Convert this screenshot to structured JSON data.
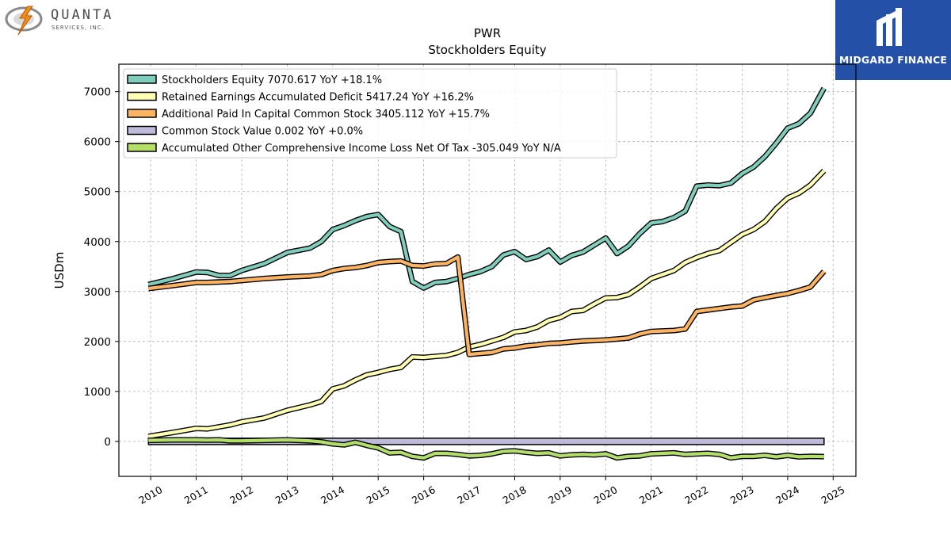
{
  "logo": {
    "company_name": "QUANTA",
    "company_sub": "SERVICES, INC.",
    "brand": "MIDGARD FINANCE"
  },
  "chart_data": {
    "type": "line",
    "title": "PWR",
    "subtitle": "Stockholders  Equity",
    "xlabel": "",
    "ylabel": "USDm",
    "xlim": [
      2009.3,
      2025.5
    ],
    "ylim": [
      -700,
      7550
    ],
    "x_ticks": [
      2010,
      2011,
      2012,
      2013,
      2014,
      2015,
      2016,
      2017,
      2018,
      2019,
      2020,
      2021,
      2022,
      2023,
      2024,
      2025
    ],
    "y_ticks": [
      0,
      1000,
      2000,
      3000,
      4000,
      5000,
      6000,
      7000
    ],
    "grid": true,
    "legend_position": "top-left",
    "series": [
      {
        "name": "Stockholders Equity  7070.617 YoY +18.1%",
        "color": "#7fcdbb",
        "style": "line",
        "x": [
          2009.95,
          2010.5,
          2011.0,
          2011.25,
          2011.5,
          2011.75,
          2012.0,
          2012.5,
          2013.0,
          2013.5,
          2013.75,
          2014.0,
          2014.25,
          2014.5,
          2014.75,
          2015.0,
          2015.25,
          2015.5,
          2015.75,
          2016.0,
          2016.25,
          2016.5,
          2016.75,
          2017.0,
          2017.25,
          2017.5,
          2017.75,
          2018.0,
          2018.25,
          2018.5,
          2018.75,
          2019.0,
          2019.25,
          2019.5,
          2019.75,
          2020.0,
          2020.25,
          2020.5,
          2020.75,
          2021.0,
          2021.25,
          2021.5,
          2021.75,
          2022.0,
          2022.25,
          2022.5,
          2022.75,
          2023.0,
          2023.25,
          2023.5,
          2023.75,
          2024.0,
          2024.25,
          2024.5,
          2024.8
        ],
        "values": [
          3140,
          3260,
          3390,
          3380,
          3320,
          3320,
          3420,
          3560,
          3780,
          3870,
          4000,
          4240,
          4320,
          4420,
          4500,
          4540,
          4300,
          4200,
          3200,
          3070,
          3180,
          3200,
          3260,
          3340,
          3400,
          3500,
          3730,
          3800,
          3640,
          3700,
          3830,
          3590,
          3720,
          3790,
          3930,
          4070,
          3760,
          3910,
          4160,
          4370,
          4400,
          4480,
          4610,
          5110,
          5130,
          5120,
          5170,
          5360,
          5490,
          5700,
          5970,
          6270,
          6360,
          6570,
          7070
        ]
      },
      {
        "name": "Retained Earnings Accumulated Deficit  5417.24 YoY +16.2%",
        "color": "#ffffb3",
        "style": "line",
        "x": [
          2009.95,
          2010.5,
          2011.0,
          2011.25,
          2011.5,
          2011.75,
          2012.0,
          2012.5,
          2013.0,
          2013.5,
          2013.75,
          2014.0,
          2014.25,
          2014.5,
          2014.75,
          2015.0,
          2015.25,
          2015.5,
          2015.75,
          2016.0,
          2016.25,
          2016.5,
          2016.75,
          2017.0,
          2017.25,
          2017.5,
          2017.75,
          2018.0,
          2018.25,
          2018.5,
          2018.75,
          2019.0,
          2019.25,
          2019.5,
          2019.75,
          2020.0,
          2020.25,
          2020.5,
          2020.75,
          2021.0,
          2021.25,
          2021.5,
          2021.75,
          2022.0,
          2022.25,
          2022.5,
          2022.75,
          2023.0,
          2023.25,
          2023.5,
          2023.75,
          2024.0,
          2024.25,
          2024.5,
          2024.8
        ],
        "values": [
          100,
          180,
          260,
          250,
          290,
          330,
          390,
          470,
          620,
          730,
          800,
          1050,
          1110,
          1230,
          1330,
          1380,
          1440,
          1480,
          1690,
          1680,
          1700,
          1720,
          1780,
          1890,
          1940,
          2010,
          2080,
          2190,
          2220,
          2290,
          2420,
          2480,
          2600,
          2620,
          2750,
          2870,
          2880,
          2940,
          3090,
          3260,
          3340,
          3420,
          3580,
          3680,
          3760,
          3820,
          3980,
          4140,
          4240,
          4400,
          4660,
          4870,
          4970,
          5130,
          5417
        ]
      },
      {
        "name": "Additional Paid In Capital Common Stock  3405.112 YoY +15.7%",
        "color": "#fdb462",
        "style": "line",
        "x": [
          2009.95,
          2010.5,
          2011.0,
          2011.25,
          2011.5,
          2011.75,
          2012.0,
          2012.5,
          2013.0,
          2013.5,
          2013.75,
          2014.0,
          2014.25,
          2014.5,
          2014.75,
          2015.0,
          2015.25,
          2015.5,
          2015.75,
          2016.0,
          2016.25,
          2016.5,
          2016.75,
          2017.0,
          2017.25,
          2017.5,
          2017.75,
          2018.0,
          2018.25,
          2018.5,
          2018.75,
          2019.0,
          2019.25,
          2019.5,
          2019.75,
          2020.0,
          2020.25,
          2020.5,
          2020.75,
          2021.0,
          2021.25,
          2021.5,
          2021.75,
          2022.0,
          2022.25,
          2022.5,
          2022.75,
          2023.0,
          2023.25,
          2023.5,
          2023.75,
          2024.0,
          2024.25,
          2024.5,
          2024.8
        ],
        "values": [
          3060,
          3120,
          3180,
          3180,
          3190,
          3200,
          3220,
          3260,
          3290,
          3310,
          3340,
          3420,
          3460,
          3480,
          3520,
          3580,
          3600,
          3610,
          3520,
          3510,
          3550,
          3560,
          3690,
          1740,
          1760,
          1780,
          1850,
          1870,
          1910,
          1930,
          1960,
          1970,
          1990,
          2010,
          2020,
          2030,
          2050,
          2070,
          2150,
          2200,
          2210,
          2220,
          2250,
          2600,
          2630,
          2660,
          2690,
          2710,
          2830,
          2880,
          2920,
          2960,
          3020,
          3090,
          3405
        ]
      },
      {
        "name": "Common Stock Value  0.002 YoY +0.0%",
        "color": "#bebada",
        "style": "band",
        "x": [
          2009.95,
          2024.8
        ],
        "values": [
          0.002,
          0.002
        ]
      },
      {
        "name": "Accumulated Other Comprehensive Income Loss Net Of Tax  -305.049 YoY N/A",
        "color": "#b3de69",
        "style": "line",
        "x": [
          2009.95,
          2010.5,
          2011.0,
          2011.25,
          2011.5,
          2011.75,
          2012.0,
          2012.5,
          2013.0,
          2013.5,
          2013.75,
          2014.0,
          2014.25,
          2014.5,
          2014.75,
          2015.0,
          2015.25,
          2015.5,
          2015.75,
          2016.0,
          2016.25,
          2016.5,
          2016.75,
          2017.0,
          2017.25,
          2017.5,
          2017.75,
          2018.0,
          2018.25,
          2018.5,
          2018.75,
          2019.0,
          2019.25,
          2019.5,
          2019.75,
          2020.0,
          2020.25,
          2020.5,
          2020.75,
          2021.0,
          2021.25,
          2021.5,
          2021.75,
          2022.0,
          2022.25,
          2022.5,
          2022.75,
          2023.0,
          2023.25,
          2023.5,
          2023.75,
          2024.0,
          2024.25,
          2024.5,
          2024.8
        ],
        "values": [
          20,
          30,
          30,
          25,
          30,
          10,
          10,
          20,
          30,
          10,
          -10,
          -50,
          -70,
          -20,
          -80,
          -130,
          -230,
          -220,
          -300,
          -330,
          -240,
          -240,
          -260,
          -290,
          -280,
          -250,
          -200,
          -190,
          -220,
          -240,
          -230,
          -290,
          -270,
          -260,
          -270,
          -250,
          -330,
          -300,
          -290,
          -250,
          -240,
          -230,
          -260,
          -250,
          -240,
          -260,
          -330,
          -300,
          -300,
          -280,
          -310,
          -280,
          -310,
          -300,
          -305
        ]
      }
    ]
  }
}
